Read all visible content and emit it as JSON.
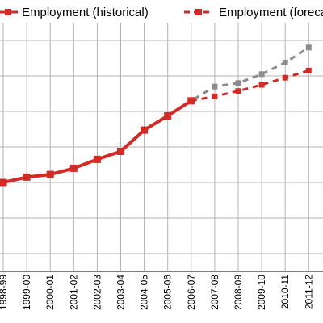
{
  "chart_data": {
    "type": "line",
    "categories": [
      "1998-99",
      "1999-00",
      "2000-01",
      "2001-02",
      "2002-03",
      "2003-04",
      "2004-05",
      "2005-06",
      "2006-07",
      "2007-08",
      "2008-09",
      "2009-10",
      "2010-11",
      "2011-12"
    ],
    "series": [
      {
        "name": "Employment (historical)",
        "color": "#d42a26",
        "style": "solid",
        "values": [
          10.0,
          10.3,
          10.45,
          10.8,
          11.3,
          11.75,
          12.95,
          13.75,
          14.6,
          null,
          null,
          null,
          null,
          null
        ]
      },
      {
        "name": "Employment (forecast)",
        "color": "#d42a26",
        "style": "dashed",
        "values": [
          null,
          null,
          null,
          null,
          null,
          null,
          null,
          null,
          14.6,
          14.85,
          15.15,
          15.5,
          15.9,
          16.3
        ]
      },
      {
        "name": "",
        "color": "#8c8c8c",
        "style": "dashed",
        "values": [
          null,
          null,
          null,
          null,
          null,
          null,
          null,
          13.75,
          14.6,
          15.4,
          15.6,
          16.1,
          16.75,
          17.6
        ]
      }
    ],
    "ylim": [
      5,
      19
    ],
    "grid": true,
    "legend": "top"
  }
}
